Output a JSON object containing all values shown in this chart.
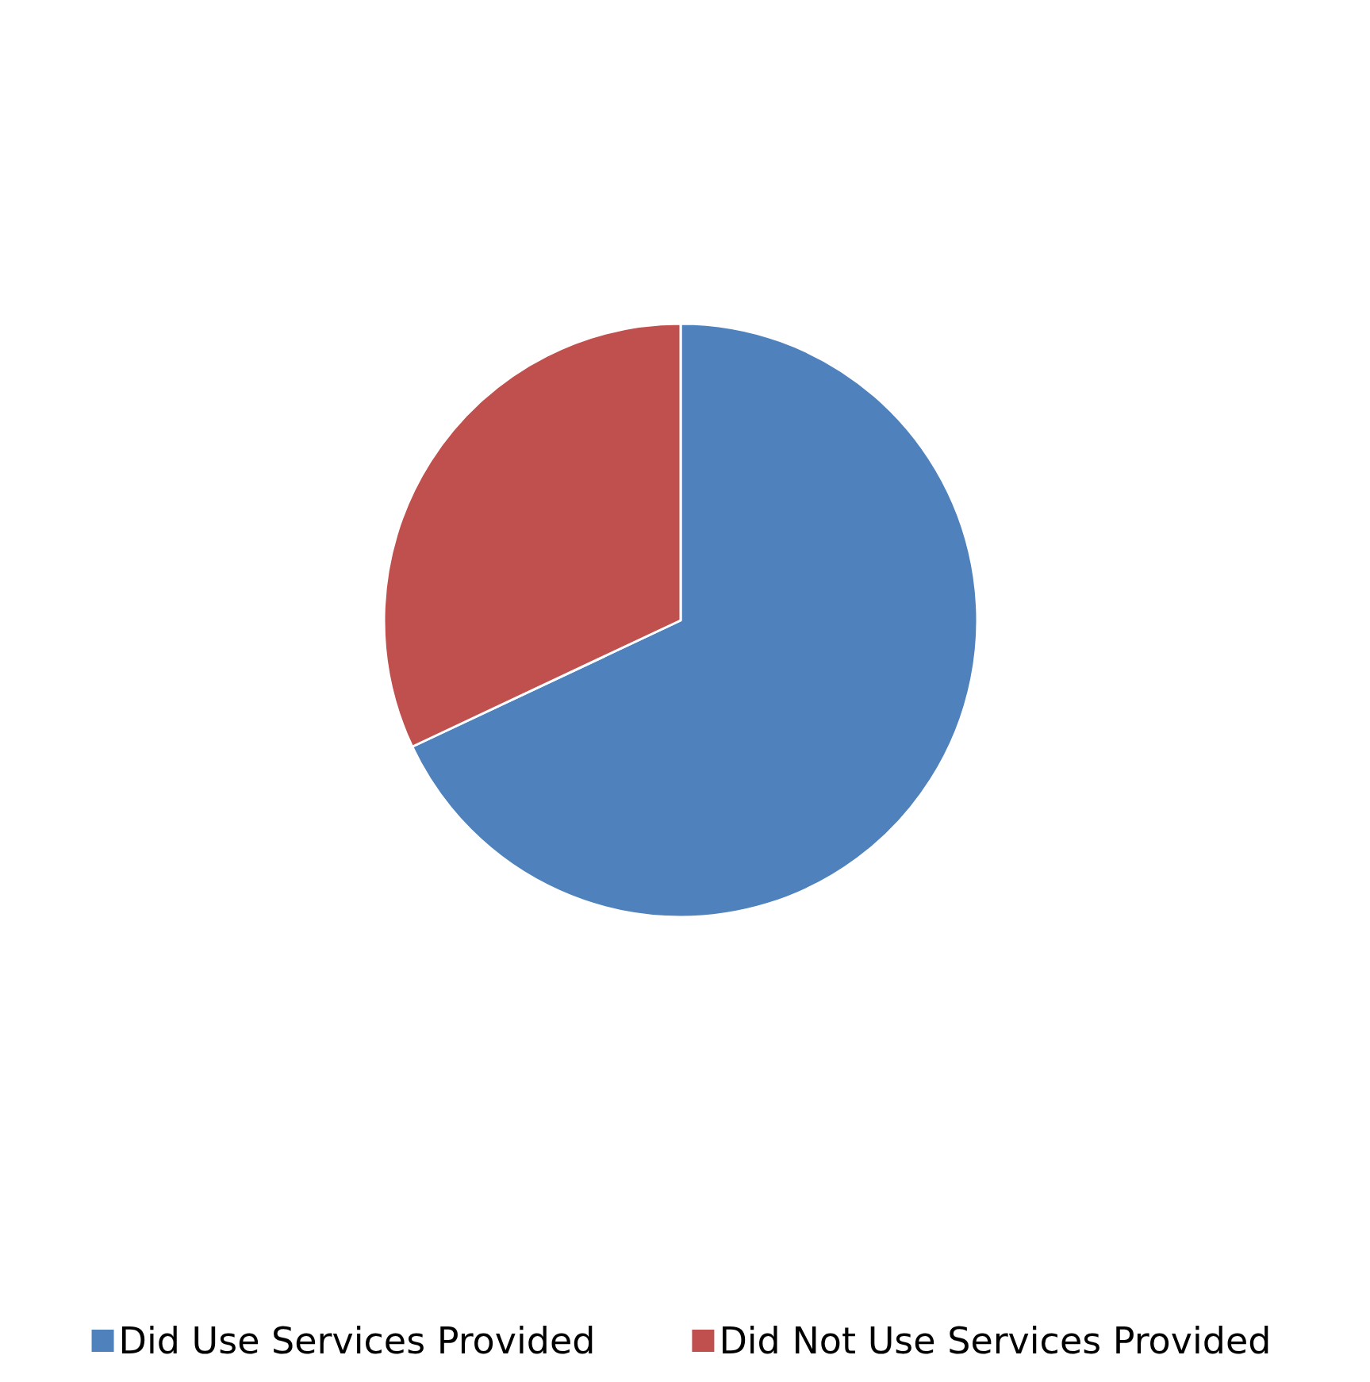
{
  "chart_data": {
    "type": "pie",
    "categories": [
      "Did Use Services Provided",
      "Did Not Use Services Provided"
    ],
    "values": [
      68,
      32
    ],
    "colors": [
      "#4f81bd",
      "#c0504d"
    ],
    "legend": "bottom"
  }
}
